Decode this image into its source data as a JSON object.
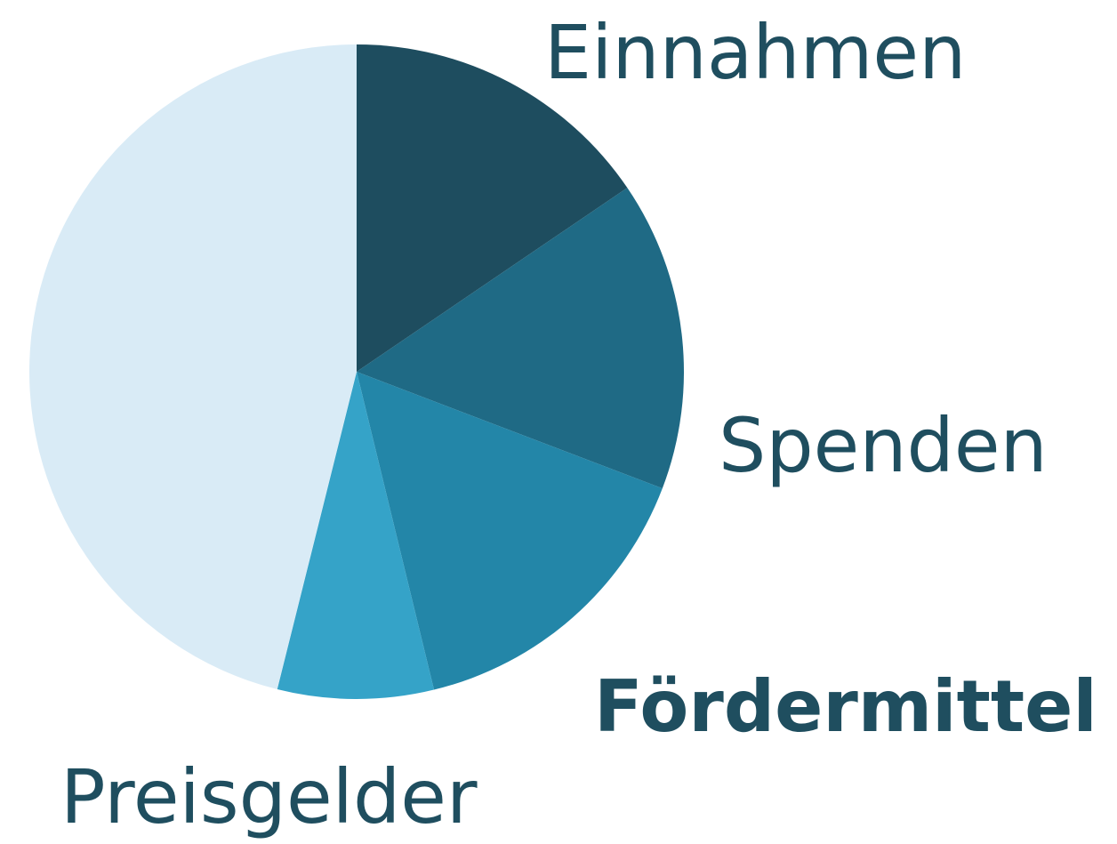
{
  "chart_data": {
    "type": "pie",
    "categories": [
      "Einnahmen",
      "Spenden",
      "Fördermittel",
      "Preisgelder",
      null
    ],
    "values": [
      15.5,
      15.3,
      15.4,
      7.7,
      46.1
    ],
    "colors": [
      "#1e4d5f",
      "#1f6a85",
      "#2386a8",
      "#35a3c8",
      "#d9ebf6"
    ],
    "highlight": 2
  }
}
